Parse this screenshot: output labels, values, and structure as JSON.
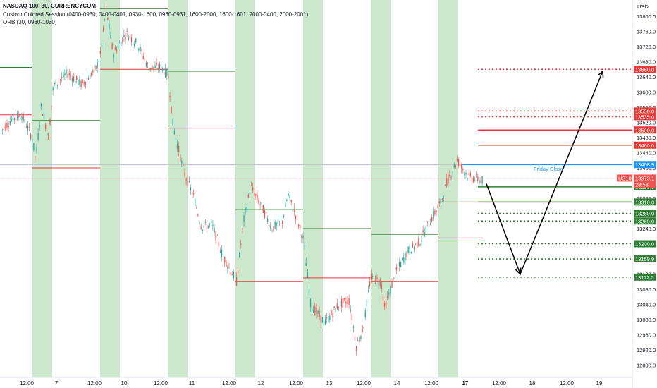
{
  "header": {
    "symbol": "NASDAQ 100, 30, CURRENCYCOM",
    "session": "Custom Colored Session (0400-0930, 0400-0401, 0930-1600, 0930-0931, 1600-2000, 1600-1601, 2000-0400, 2000-2001)",
    "orb": "ORB (30, 0930-1030)"
  },
  "currency": "USD",
  "colors": {
    "up": "#26a69a",
    "down": "#ef5350",
    "session": "#c8e6c9",
    "green_line": "#2e7d32",
    "red_line": "#e53935",
    "blue": "#2196f3"
  },
  "chart_data": {
    "type": "candlestick",
    "symbol": "NASDAQ 100",
    "interval": "30",
    "ylim": [
      12860,
      13860
    ],
    "y_ticks": [
      13800,
      13760,
      13720,
      13680,
      13640,
      13600,
      13560,
      13520,
      13480,
      13440,
      13400,
      13360,
      13320,
      13280,
      13240,
      13200,
      13160,
      13120,
      13080,
      13040,
      13000,
      12960,
      12920,
      12880
    ],
    "x_ticks": [
      "12:00",
      "7",
      "12:00",
      "10",
      "12:00",
      "11",
      "12:00",
      "12",
      "12:00",
      "13",
      "12:00",
      "14",
      "12:00",
      "17",
      "12:00",
      "18",
      "12:00",
      "19"
    ],
    "price_path": [
      [
        0,
        13495
      ],
      [
        14,
        13525
      ],
      [
        30,
        13540
      ],
      [
        45,
        13480
      ],
      [
        50,
        13420
      ],
      [
        58,
        13565
      ],
      [
        68,
        13480
      ],
      [
        75,
        13615
      ],
      [
        95,
        13650
      ],
      [
        115,
        13620
      ],
      [
        135,
        13660
      ],
      [
        142,
        13700
      ],
      [
        150,
        13820
      ],
      [
        160,
        13700
      ],
      [
        178,
        13755
      ],
      [
        195,
        13725
      ],
      [
        210,
        13665
      ],
      [
        228,
        13665
      ],
      [
        238,
        13645
      ],
      [
        245,
        13510
      ],
      [
        260,
        13390
      ],
      [
        275,
        13320
      ],
      [
        285,
        13245
      ],
      [
        300,
        13250
      ],
      [
        315,
        13170
      ],
      [
        335,
        13100
      ],
      [
        345,
        13260
      ],
      [
        355,
        13350
      ],
      [
        370,
        13300
      ],
      [
        385,
        13240
      ],
      [
        400,
        13260
      ],
      [
        408,
        13330
      ],
      [
        420,
        13270
      ],
      [
        430,
        13210
      ],
      [
        440,
        13040
      ],
      [
        460,
        12990
      ],
      [
        480,
        13040
      ],
      [
        495,
        13050
      ],
      [
        505,
        12930
      ],
      [
        515,
        12980
      ],
      [
        525,
        13110
      ],
      [
        540,
        13100
      ],
      [
        545,
        13030
      ],
      [
        560,
        13120
      ],
      [
        578,
        13180
      ],
      [
        595,
        13205
      ],
      [
        605,
        13245
      ],
      [
        625,
        13310
      ],
      [
        635,
        13370
      ],
      [
        648,
        13420
      ],
      [
        655,
        13400
      ],
      [
        665,
        13375
      ],
      [
        682,
        13368
      ]
    ],
    "orb_lines": [
      {
        "color": "green",
        "price": 13665,
        "x0": 0,
        "x1": 45
      },
      {
        "color": "red",
        "price": 13540,
        "x0": 0,
        "x1": 45
      },
      {
        "color": "green",
        "price": 13525,
        "x0": 45,
        "x1": 142
      },
      {
        "color": "red",
        "price": 13400,
        "x0": 45,
        "x1": 142
      },
      {
        "color": "green",
        "price": 13820,
        "x0": 142,
        "x1": 238
      },
      {
        "color": "red",
        "price": 13660,
        "x0": 142,
        "x1": 238
      },
      {
        "color": "green",
        "price": 13655,
        "x0": 238,
        "x1": 334
      },
      {
        "color": "red",
        "price": 13505,
        "x0": 238,
        "x1": 334
      },
      {
        "color": "green",
        "price": 13290,
        "x0": 334,
        "x1": 430
      },
      {
        "color": "red",
        "price": 13100,
        "x0": 334,
        "x1": 430
      },
      {
        "color": "green",
        "price": 13240,
        "x0": 430,
        "x1": 526
      },
      {
        "color": "red",
        "price": 13110,
        "x0": 430,
        "x1": 526
      },
      {
        "color": "green",
        "price": 13225,
        "x0": 526,
        "x1": 622
      },
      {
        "color": "red",
        "price": 13100,
        "x0": 526,
        "x1": 622
      },
      {
        "color": "green",
        "price": 13310,
        "x0": 622,
        "x1": 685
      },
      {
        "color": "red",
        "price": 13215,
        "x0": 622,
        "x1": 685
      }
    ],
    "levels": [
      {
        "price": 13660.0,
        "label": "13660.0",
        "color": "red",
        "style": "dotted"
      },
      {
        "price": 13550.0,
        "label": "13550.0",
        "color": "red",
        "style": "dotted"
      },
      {
        "price": 13535.0,
        "label": "13535.0",
        "color": "red",
        "style": "dotted"
      },
      {
        "price": 13500.0,
        "label": "13500.0",
        "color": "red",
        "style": "solid"
      },
      {
        "price": 13460.0,
        "label": "13460.0",
        "color": "red",
        "style": "solid"
      },
      {
        "price": 13408.9,
        "label": "13408.9",
        "color": "blue",
        "style": "solid"
      },
      {
        "price": 13350.0,
        "label": "13350.0",
        "color": "green",
        "style": "solid"
      },
      {
        "price": 13310.0,
        "label": "13310.0",
        "color": "green",
        "style": "solid"
      },
      {
        "price": 13280.0,
        "label": "13280.0",
        "color": "green",
        "style": "dotted"
      },
      {
        "price": 13260.0,
        "label": "13260.0",
        "color": "green",
        "style": "dotted"
      },
      {
        "price": 13200.0,
        "label": "13200.0",
        "color": "green",
        "style": "dotted"
      },
      {
        "price": 13159.9,
        "label": "13159.9",
        "color": "green",
        "style": "dotted"
      },
      {
        "price": 13112.0,
        "label": "13112.0",
        "color": "green",
        "style": "dotted"
      }
    ],
    "current": {
      "symbol": "US100",
      "price": "13373.1",
      "countdown": "28:53",
      "price_value": 13373.1
    },
    "annotation": "Friday Close",
    "projection": [
      [
        690,
        13358
      ],
      [
        738,
        13120
      ],
      [
        855,
        13655
      ]
    ]
  }
}
